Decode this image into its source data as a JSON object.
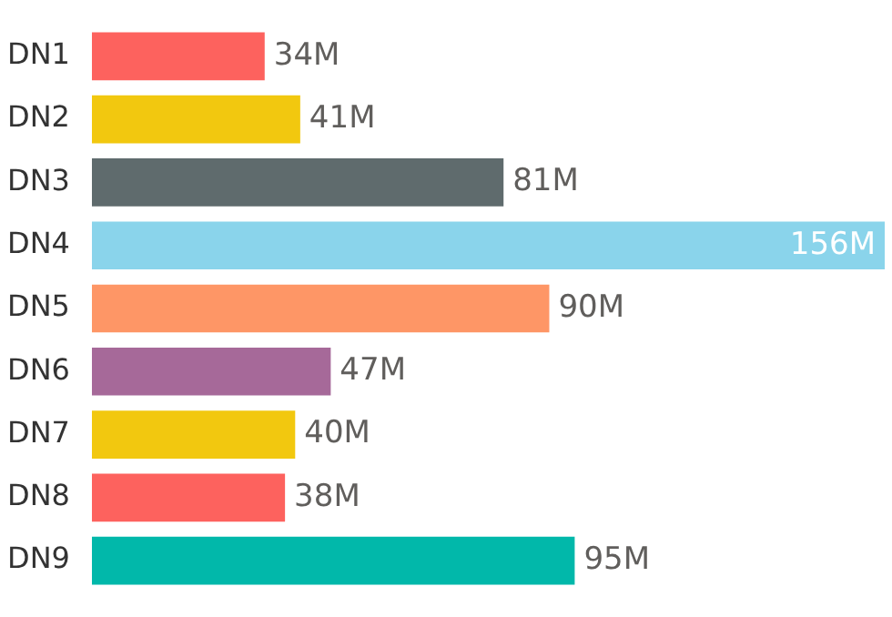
{
  "chart_data": {
    "type": "bar",
    "orientation": "horizontal",
    "categories": [
      "DN1",
      "DN2",
      "DN3",
      "DN4",
      "DN5",
      "DN6",
      "DN7",
      "DN8",
      "DN9"
    ],
    "values": [
      34,
      41,
      81,
      156,
      90,
      47,
      40,
      38,
      95
    ],
    "colors": [
      "#fd625e",
      "#f2c80f",
      "#5f6b6d",
      "#8ad4eb",
      "#fe9666",
      "#a66999",
      "#f2c80f",
      "#fd625e",
      "#01b8aa"
    ],
    "value_labels": [
      "34M",
      "41M",
      "81M",
      "156M",
      "90M",
      "47M",
      "40M",
      "38M",
      "95M"
    ],
    "grid": false,
    "legend": false
  }
}
